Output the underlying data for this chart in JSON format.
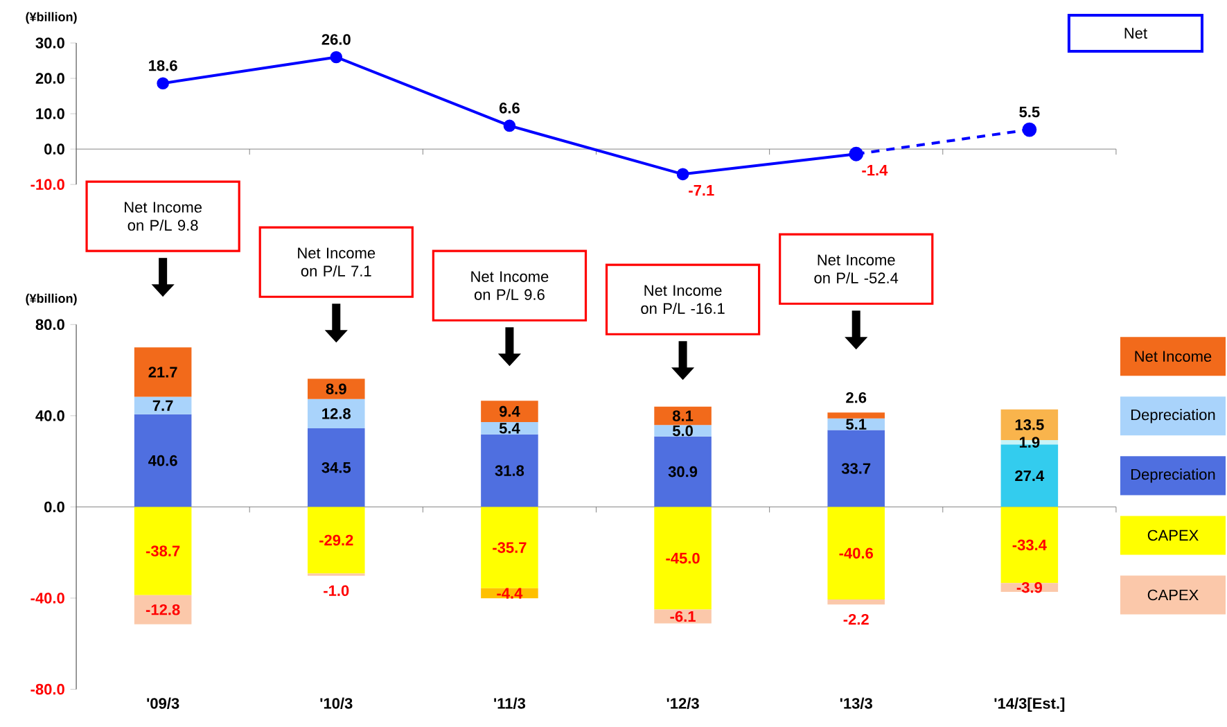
{
  "chart_data": [
    {
      "type": "line",
      "ylabel": "(¥billion)",
      "categories": [
        null,
        null,
        null,
        null,
        null,
        null
      ],
      "series": [
        {
          "color": "#0000ff",
          "line_style": "dashed",
          "values": [
            null,
            null,
            null,
            null,
            -1.4,
            5.5
          ],
          "value_labels": [
            null,
            null,
            null,
            null,
            null,
            "5.5"
          ]
        },
        {
          "name": "Net",
          "color": "#0000ff",
          "values": [
            18.6,
            26.0,
            6.6,
            -7.1,
            -1.4,
            null
          ],
          "value_labels": [
            "18.6",
            "26.0",
            "6.6",
            "-7.1",
            "-1.4",
            null
          ]
        }
      ],
      "ylim": [
        -10,
        30
      ],
      "yticks": [
        {
          "value": -10,
          "label": "-10.0"
        },
        {
          "value": 0,
          "label": "0.0"
        },
        {
          "value": 10,
          "label": "10.0"
        },
        {
          "value": 20,
          "label": "20.0"
        },
        {
          "value": 30,
          "label": "30.0"
        }
      ],
      "marker": "circle",
      "line_style": "solid",
      "legend": "top right"
    },
    {
      "type": "bar",
      "stacked": true,
      "ylabel": "(¥billion)",
      "categories": [
        "'09/3",
        "'10/3",
        "'11/3",
        "'12/3",
        "'13/3",
        "'14/3[Est.]"
      ],
      "series": [
        {
          "name": "Depreciation",
          "color": "#4f6fe0",
          "colors": [
            "#4f6fe0",
            "#4f6fe0",
            "#4f6fe0",
            "#4f6fe0",
            "#4f6fe0",
            "#33ccee"
          ],
          "values": [
            40.6,
            34.5,
            31.8,
            30.9,
            33.7,
            27.4
          ],
          "value_labels": [
            "40.6",
            "34.5",
            "31.8",
            "30.9",
            "33.7",
            "27.4"
          ]
        },
        {
          "name": "Depreciation",
          "color": "#a9d3fb",
          "colors": [
            "#a9d3fb",
            "#a9d3fb",
            "#a9d3fb",
            "#a9d3fb",
            "#a9d3fb",
            "#c9f3f7"
          ],
          "values": [
            7.7,
            12.8,
            5.4,
            5.0,
            5.1,
            1.9
          ],
          "value_labels": [
            "7.7",
            "12.8",
            "5.4",
            "5.0",
            "5.1",
            "1.9"
          ]
        },
        {
          "name": "Net Income",
          "color": "#f26a1b",
          "colors": [
            "#f26a1b",
            "#f26a1b",
            "#f26a1b",
            "#f26a1b",
            "#f26a1b",
            "#f9b44c"
          ],
          "values": [
            21.7,
            8.9,
            9.4,
            8.1,
            2.6,
            13.5
          ],
          "value_labels": [
            "21.7",
            "8.9",
            "9.4",
            "8.1",
            "2.6",
            "13.5"
          ]
        },
        {
          "name": "CAPEX",
          "color": "#ffff00",
          "values": [
            -38.7,
            -29.2,
            -35.7,
            -45.0,
            -40.6,
            -33.4
          ],
          "value_labels": [
            "-38.7",
            "-29.2",
            "-35.7",
            "-45.0",
            "-40.6",
            "-33.4"
          ]
        },
        {
          "name": "CAPEX",
          "color": "#fbc8aa",
          "colors": [
            "#fbc8aa",
            "#fbc8aa",
            "#ffc000",
            "#fbc8aa",
            "#fbc8aa",
            "#fbc8aa"
          ],
          "values": [
            -12.8,
            -1.0,
            -4.4,
            -6.1,
            -2.2,
            -3.9
          ],
          "value_labels": [
            "-12.8",
            "-1.0",
            "-4.4",
            "-6.1",
            "-2.2",
            "-3.9"
          ]
        }
      ],
      "ylim": [
        -80,
        80
      ],
      "yticks": [
        {
          "value": -80,
          "label": "-80.0"
        },
        {
          "value": -40,
          "label": "-40.0"
        },
        {
          "value": 0,
          "label": "0.0"
        },
        {
          "value": 40,
          "label": "40.0"
        },
        {
          "value": 80,
          "label": "80.0"
        }
      ],
      "legend": "right",
      "annotations": [
        "Net Income on P/L 9.8",
        "Net Income on P/L 7.1",
        "Net Income on P/L 9.6",
        "Net Income on P/L -16.1",
        "Net Income on P/L -52.4"
      ]
    }
  ]
}
